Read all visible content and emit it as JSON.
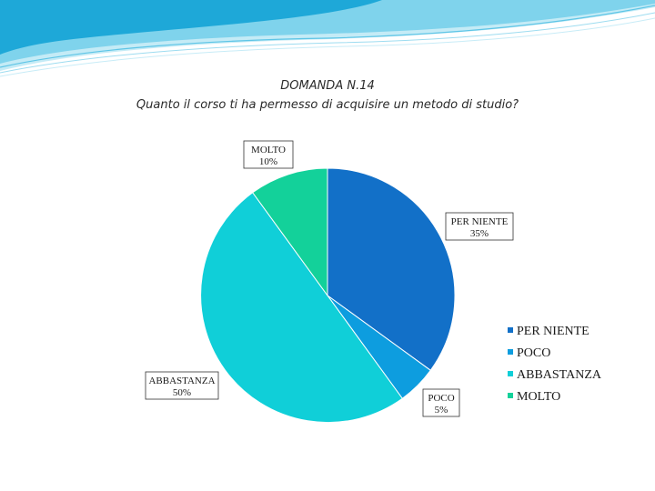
{
  "chart_data": {
    "type": "pie",
    "title": "DOMANDA N.14",
    "subtitle": "Quanto il corso ti ha permesso di acquisire un metodo di studio?",
    "categories": [
      "PER NIENTE",
      "POCO",
      "ABBASTANZA",
      "MOLTO"
    ],
    "values": [
      35,
      5,
      50,
      10
    ],
    "value_labels": [
      "35%",
      "5%",
      "50%",
      "10%"
    ],
    "colors": [
      "#1270c8",
      "#0d9ddf",
      "#10cfd8",
      "#13d19a"
    ],
    "legend_position": "right",
    "start_angle_deg": 0,
    "direction": "clockwise"
  },
  "theme": {
    "wave_colors": [
      "#1aa6d6",
      "#6fd0ea",
      "#bfe9f5"
    ]
  }
}
